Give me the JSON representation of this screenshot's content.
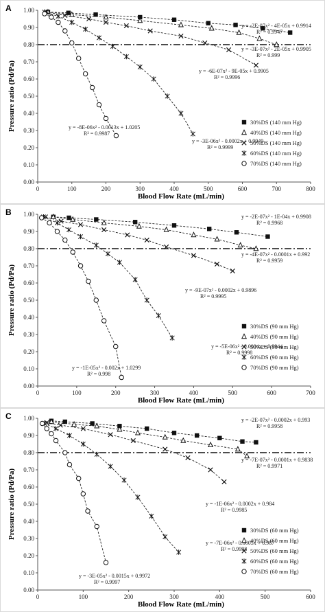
{
  "figure": {
    "panels": [
      {
        "letter": "A",
        "ylabel": "Pressure ratio (Pd/Pa)",
        "xlabel": "Blood Flow Rate (mL/min)",
        "xlim": [
          0,
          800
        ],
        "ylim": [
          0,
          1.0
        ],
        "xticks": [
          0,
          100,
          200,
          300,
          400,
          500,
          600,
          700,
          800
        ],
        "yticks": [
          0,
          0.1,
          0.2,
          0.3,
          0.4,
          0.5,
          0.6,
          0.7,
          0.8,
          0.9,
          1.0
        ],
        "threshold": 0.8,
        "legend": [
          "30%DS (140 mm Hg)",
          "40%DS (140 mm Hg)",
          "50%DS (140 mm Hg)",
          "60%DS (140 mm Hg)",
          "70%DS (140 mm Hg)"
        ],
        "equations": [
          {
            "eq": "y = -2E-07x² - 4E-05x + 0.9914",
            "r2": "R² = 0.9947"
          },
          {
            "eq": "y = -3E-07x² - 2E-05x + 0.9905",
            "r2": "R² = 0.999"
          },
          {
            "eq": "y = -6E-07x² - 9E-05x + 0.9905",
            "r2": "R² = 0.9996"
          },
          {
            "eq": "y = -3E-06x² - 0.0002x + 0.9949",
            "r2": "R² = 0.9999"
          },
          {
            "eq": "y = -8E-06x² - 0.0013x + 1.0205",
            "r2": "R² = 0.9987"
          }
        ]
      },
      {
        "letter": "B",
        "ylabel": "Pressure ratio (Pd/Pa)",
        "xlabel": "Blood Flow Rate (mL/min)",
        "xlim": [
          0,
          700
        ],
        "ylim": [
          0,
          1.0
        ],
        "xticks": [
          0,
          100,
          200,
          300,
          400,
          500,
          600,
          700
        ],
        "yticks": [
          0,
          0.1,
          0.2,
          0.3,
          0.4,
          0.5,
          0.6,
          0.7,
          0.8,
          0.9,
          1.0
        ],
        "threshold": 0.8,
        "legend": [
          "30%DS (90 mm Hg)",
          "40%DS (90 mm Hg)",
          "50%DS (90 mm Hg)",
          "60%DS (90 mm Hg)",
          "70%DS (90 mm Hg)"
        ],
        "equations": [
          {
            "eq": "y = -2E-07x² - 1E-04x + 0.9908",
            "r2": "R² = 0.9968"
          },
          {
            "eq": "y = -4E-07x² - 0.0001x + 0.992",
            "r2": "R² = 0.9959"
          },
          {
            "eq": "y = -9E-07x² - 0.0002x + 0.9896",
            "r2": "R² = 0.9995"
          },
          {
            "eq": "y = -5E-06x² - 0.0004x + 0.9944",
            "r2": "R² = 0.9998"
          },
          {
            "eq": "y = -1E-05x² - 0.002x + 1.0299",
            "r2": "R² = 0.998"
          }
        ]
      },
      {
        "letter": "C",
        "ylabel": "Pressure ratio (Pd/Pa)",
        "xlabel": "Blood Flow Rate (mL/min)",
        "xlim": [
          0,
          600
        ],
        "ylim": [
          0,
          1.0
        ],
        "xticks": [
          0,
          100,
          200,
          300,
          400,
          500,
          600
        ],
        "yticks": [
          0,
          0.1,
          0.2,
          0.3,
          0.4,
          0.5,
          0.6,
          0.7,
          0.8,
          0.9,
          1.0
        ],
        "threshold": 0.8,
        "legend": [
          "30%DS (60 mm Hg)",
          "40%DS (60 mm Hg)",
          "50%DS (60 mm Hg)",
          "60%DS (60 mm Hg)",
          "70%DS (60 mm Hg)"
        ],
        "equations": [
          {
            "eq": "y = -2E-07x² - 0.0002x + 0.993",
            "r2": "R² = 0.9958"
          },
          {
            "eq": "y = -7E-07x² - 0.0001x + 0.9838",
            "r2": "R² = 0.9971"
          },
          {
            "eq": "y = -1E-06x² - 0.0002x + 0.984",
            "r2": "R² = 0.9985"
          },
          {
            "eq": "y = -7E-06x² - 0.0005x + 0.987",
            "r2": "R² = 0.9998"
          },
          {
            "eq": "y = -3E-05x² - 0.0015x + 0.9972",
            "r2": "R² = 0.9997"
          }
        ]
      }
    ]
  },
  "chart_data": [
    {
      "type": "scatter",
      "title": "A",
      "xlabel": "Blood Flow Rate (mL/min)",
      "ylabel": "Pressure ratio (Pd/Pa)",
      "xlim": [
        0,
        800
      ],
      "ylim": [
        0,
        1.0
      ],
      "grid": false,
      "legend_position": "right",
      "reference_line_y": 0.8,
      "series": [
        {
          "name": "30%DS (140 mm Hg)",
          "marker": "square",
          "x": [
            30,
            90,
            170,
            300,
            400,
            500,
            580,
            660,
            740
          ],
          "y": [
            0.99,
            0.985,
            0.975,
            0.96,
            0.945,
            0.925,
            0.915,
            0.895,
            0.87
          ]
        },
        {
          "name": "40%DS (140 mm Hg)",
          "marker": "triangle",
          "x": [
            30,
            100,
            200,
            300,
            420,
            510,
            590,
            650,
            700
          ],
          "y": [
            0.99,
            0.975,
            0.96,
            0.94,
            0.915,
            0.895,
            0.87,
            0.835,
            0.8
          ]
        },
        {
          "name": "50%DS (140 mm Hg)",
          "marker": "x",
          "x": [
            25,
            80,
            150,
            200,
            260,
            330,
            420,
            490,
            560,
            640
          ],
          "y": [
            0.99,
            0.97,
            0.95,
            0.93,
            0.91,
            0.88,
            0.85,
            0.81,
            0.77,
            0.68
          ]
        },
        {
          "name": "60%DS (140 mm Hg)",
          "marker": "star",
          "x": [
            20,
            60,
            100,
            140,
            180,
            220,
            260,
            300,
            340,
            380,
            420,
            455
          ],
          "y": [
            0.99,
            0.965,
            0.93,
            0.89,
            0.84,
            0.79,
            0.73,
            0.67,
            0.6,
            0.5,
            0.4,
            0.28
          ]
        },
        {
          "name": "70%DS (140 mm Hg)",
          "marker": "circle",
          "x": [
            20,
            40,
            60,
            80,
            100,
            120,
            140,
            160,
            180,
            200,
            230
          ],
          "y": [
            0.98,
            0.96,
            0.93,
            0.88,
            0.81,
            0.72,
            0.63,
            0.55,
            0.45,
            0.37,
            0.27
          ]
        }
      ]
    },
    {
      "type": "scatter",
      "title": "B",
      "xlabel": "Blood Flow Rate (mL/min)",
      "ylabel": "Pressure ratio (Pd/Pa)",
      "xlim": [
        0,
        700
      ],
      "ylim": [
        0,
        1.0
      ],
      "grid": false,
      "legend_position": "right",
      "reference_line_y": 0.8,
      "series": [
        {
          "name": "30%DS (90 mm Hg)",
          "marker": "square",
          "x": [
            40,
            80,
            150,
            250,
            350,
            440,
            510,
            590
          ],
          "y": [
            0.985,
            0.98,
            0.97,
            0.955,
            0.935,
            0.915,
            0.895,
            0.87
          ]
        },
        {
          "name": "40%DS (90 mm Hg)",
          "marker": "triangle",
          "x": [
            40,
            90,
            170,
            260,
            330,
            400,
            460,
            520,
            560
          ],
          "y": [
            0.985,
            0.97,
            0.95,
            0.93,
            0.91,
            0.88,
            0.855,
            0.82,
            0.8
          ]
        },
        {
          "name": "50%DS (90 mm Hg)",
          "marker": "x",
          "x": [
            20,
            60,
            110,
            170,
            230,
            280,
            330,
            400,
            460,
            500
          ],
          "y": [
            0.985,
            0.96,
            0.94,
            0.91,
            0.88,
            0.85,
            0.81,
            0.76,
            0.71,
            0.67
          ]
        },
        {
          "name": "60%DS (90 mm Hg)",
          "marker": "star",
          "x": [
            15,
            50,
            80,
            110,
            150,
            180,
            210,
            250,
            280,
            310,
            345
          ],
          "y": [
            0.985,
            0.95,
            0.91,
            0.87,
            0.82,
            0.77,
            0.72,
            0.62,
            0.5,
            0.41,
            0.28
          ]
        },
        {
          "name": "70%DS (90 mm Hg)",
          "marker": "circle",
          "x": [
            10,
            30,
            50,
            70,
            90,
            110,
            130,
            150,
            170,
            200,
            215
          ],
          "y": [
            0.98,
            0.95,
            0.9,
            0.85,
            0.78,
            0.7,
            0.61,
            0.5,
            0.38,
            0.23,
            0.05
          ]
        }
      ]
    },
    {
      "type": "scatter",
      "title": "C",
      "xlabel": "Blood Flow Rate (mL/min)",
      "ylabel": "Pressure ratio (Pd/Pa)",
      "xlim": [
        0,
        600
      ],
      "ylim": [
        0,
        1.0
      ],
      "grid": false,
      "legend_position": "right",
      "reference_line_y": 0.8,
      "series": [
        {
          "name": "30%DS (60 mm Hg)",
          "marker": "square",
          "x": [
            30,
            60,
            120,
            180,
            240,
            300,
            350,
            400,
            450,
            480
          ],
          "y": [
            0.985,
            0.98,
            0.97,
            0.955,
            0.94,
            0.915,
            0.9,
            0.885,
            0.865,
            0.86
          ]
        },
        {
          "name": "40%DS (60 mm Hg)",
          "marker": "triangle",
          "x": [
            30,
            80,
            130,
            180,
            220,
            280,
            320,
            380,
            440,
            460
          ],
          "y": [
            0.98,
            0.965,
            0.955,
            0.935,
            0.915,
            0.89,
            0.87,
            0.845,
            0.82,
            0.78
          ]
        },
        {
          "name": "50%DS (60 mm Hg)",
          "marker": "x",
          "x": [
            20,
            50,
            100,
            160,
            210,
            280,
            330,
            380,
            410
          ],
          "y": [
            0.975,
            0.96,
            0.94,
            0.905,
            0.87,
            0.82,
            0.77,
            0.7,
            0.63
          ]
        },
        {
          "name": "60%DS (60 mm Hg)",
          "marker": "star",
          "x": [
            15,
            40,
            70,
            100,
            130,
            160,
            190,
            220,
            250,
            280,
            310
          ],
          "y": [
            0.97,
            0.94,
            0.9,
            0.85,
            0.79,
            0.72,
            0.64,
            0.54,
            0.43,
            0.31,
            0.22
          ]
        },
        {
          "name": "70%DS (60 mm Hg)",
          "marker": "circle",
          "x": [
            10,
            20,
            30,
            40,
            60,
            70,
            90,
            100,
            110,
            130,
            150
          ],
          "y": [
            0.97,
            0.94,
            0.91,
            0.87,
            0.8,
            0.73,
            0.65,
            0.56,
            0.46,
            0.37,
            0.16
          ]
        }
      ]
    }
  ]
}
